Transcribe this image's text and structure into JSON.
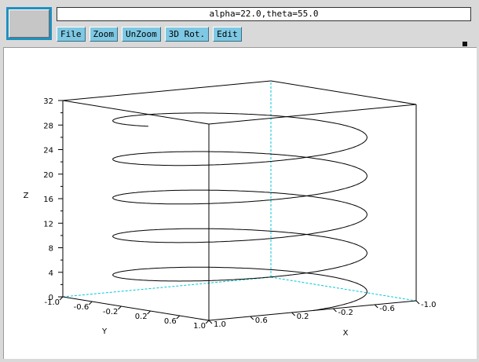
{
  "status": {
    "view_angles": "alpha=22.0,theta=55.0"
  },
  "menu": [
    {
      "label": "File"
    },
    {
      "label": "Zoom"
    },
    {
      "label": "UnZoom"
    },
    {
      "label": "3D Rot."
    },
    {
      "label": "Edit"
    }
  ],
  "colors": {
    "menu_button": "#7ec8e3",
    "hidden_edges": "#00c8d8",
    "selected_window": "#1e90c0"
  },
  "chart_data": {
    "type": "line",
    "plot3d": true,
    "view": {
      "alpha": 22.0,
      "theta": 55.0
    },
    "series": [
      {
        "x": [],
        "y": [],
        "z": [],
        "curve": "helix: x=cos(t), y=sin(t), z=t, t from 0 to 30"
      }
    ],
    "xlabel": "X",
    "ylabel": "Y",
    "zlabel": "Z",
    "xlim": [
      -1.0,
      1.0
    ],
    "ylim": [
      -1.0,
      1.0
    ],
    "zlim": [
      0,
      32
    ],
    "z_ticks": [
      "0",
      "4",
      "8",
      "12",
      "16",
      "20",
      "24",
      "28",
      "32"
    ],
    "x_ticks": [
      "1.0",
      "0.6",
      "0.2",
      "-0.2",
      "-0.6",
      "-1.0"
    ],
    "y_ticks": [
      "-1.0",
      "-0.6",
      "-0.2",
      "0.2",
      "0.6",
      "1.0"
    ]
  }
}
